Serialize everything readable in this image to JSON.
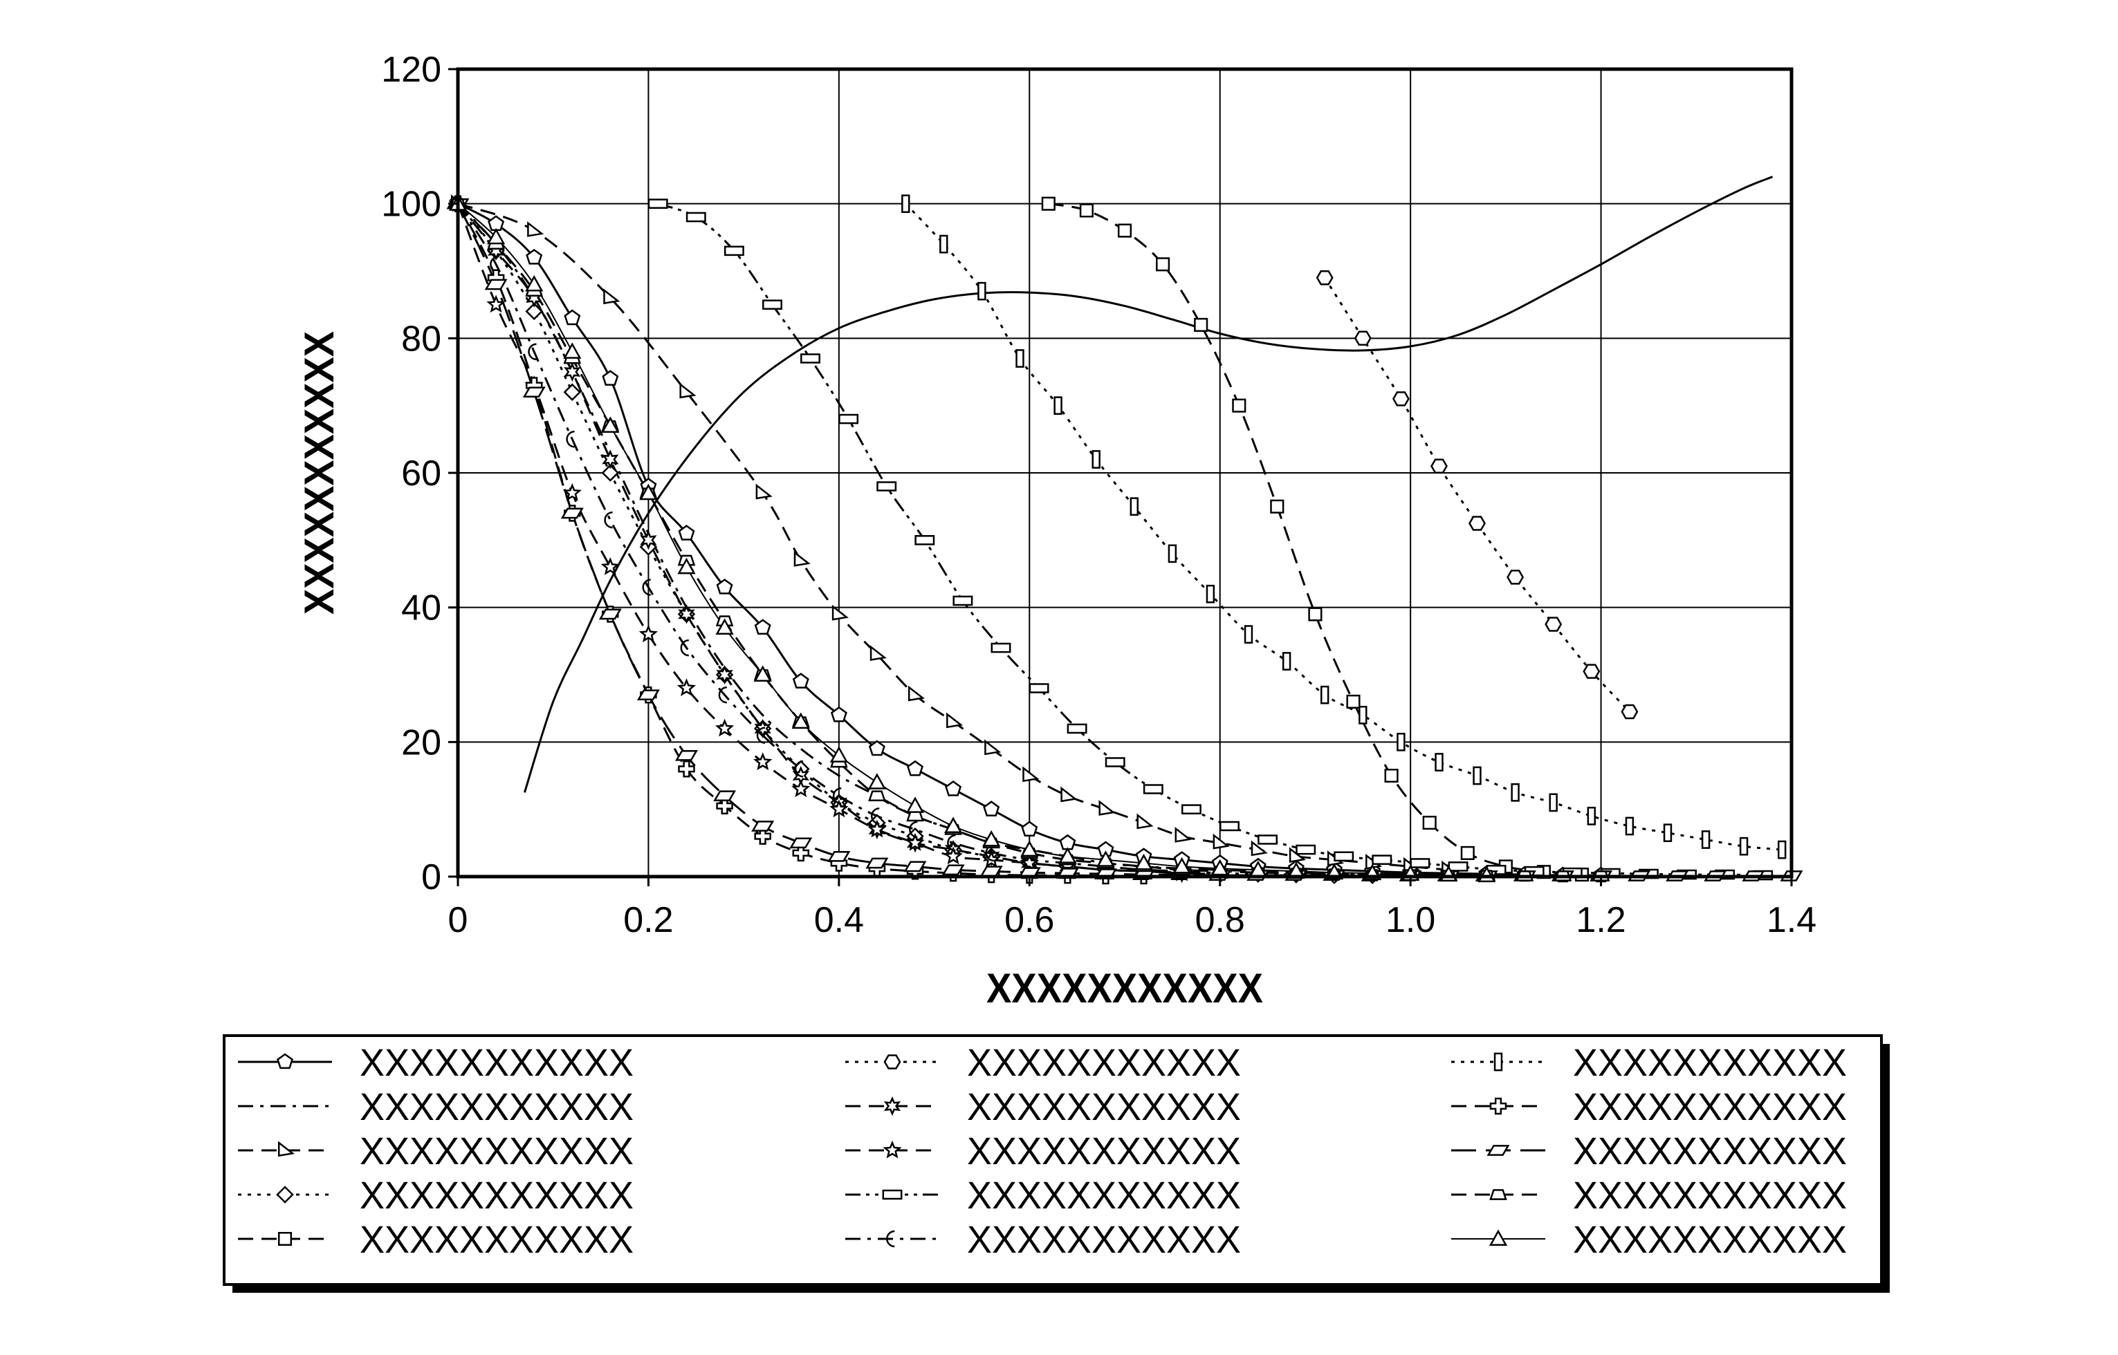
{
  "chart_data": {
    "type": "line",
    "title": "",
    "xlabel": "XXXXXXXXXXX",
    "ylabel": "XXXXXXXXXXX",
    "xlim": [
      0,
      1.4
    ],
    "ylim": [
      0,
      120
    ],
    "xticks": [
      "0",
      "0.2",
      "0.4",
      "0.6",
      "0.8",
      "1.0",
      "1.2",
      "1.4"
    ],
    "yticks": [
      "0",
      "20",
      "40",
      "60",
      "80",
      "100",
      "120"
    ],
    "grid": true,
    "legend": {
      "position": "bottom",
      "columns": 3
    },
    "series": [
      {
        "name": "XXXXXXXXXXX",
        "marker": "pentagon",
        "dash": "solid",
        "x": [
          0,
          0.04,
          0.08,
          0.12,
          0.16,
          0.2,
          0.24,
          0.28,
          0.32,
          0.36,
          0.4,
          0.44,
          0.48,
          0.52,
          0.56,
          0.6,
          0.64,
          0.68,
          0.72,
          0.76,
          0.8,
          0.84,
          0.88,
          0.92,
          0.96,
          1.0,
          1.04,
          1.08,
          1.12,
          1.16,
          1.2
        ],
        "y": [
          100,
          97,
          92,
          83,
          74,
          58,
          51,
          43,
          37,
          29,
          24,
          19,
          16,
          13,
          10,
          7,
          5,
          4,
          3,
          2.5,
          2,
          1.5,
          1.2,
          1,
          0.8,
          0.6,
          0.5,
          0.4,
          0.3,
          0.2,
          0.2
        ]
      },
      {
        "name": "XXXXXXXXXXX",
        "marker": "circle",
        "dash": "dashdot",
        "x": [
          0,
          0.04,
          0.08,
          0.12,
          0.16,
          0.2,
          0.24,
          0.28,
          0.32,
          0.36,
          0.4,
          0.44,
          0.48,
          0.52,
          0.56,
          0.6,
          0.64,
          0.68,
          0.72,
          0.76,
          0.8,
          0.84,
          0.88,
          0.92,
          0.96,
          1.0,
          1.04,
          1.08,
          1.12
        ],
        "y": [
          100,
          94,
          86,
          75,
          63,
          51,
          40,
          31,
          24,
          19,
          15,
          12,
          9,
          7,
          5,
          4,
          3,
          2,
          1.5,
          1.2,
          1,
          0.8,
          0.6,
          0.5,
          0.4,
          0.3,
          0.2,
          0.2,
          0.1
        ]
      },
      {
        "name": "XXXXXXXXXXX",
        "marker": "triangle-right",
        "dash": "dash",
        "x": [
          0,
          0.08,
          0.16,
          0.24,
          0.32,
          0.36,
          0.4,
          0.44,
          0.48,
          0.52,
          0.56,
          0.6,
          0.64,
          0.68,
          0.72,
          0.76,
          0.8,
          0.84,
          0.88,
          0.92,
          0.96,
          1.0,
          1.04
        ],
        "y": [
          100,
          96,
          86,
          72,
          57,
          47,
          39,
          33,
          27,
          23,
          19,
          15,
          12,
          10,
          8,
          6,
          5,
          4,
          3,
          2.5,
          2,
          1.5,
          1
        ]
      },
      {
        "name": "XXXXXXXXXXX",
        "marker": "diamond",
        "dash": "dot",
        "x": [
          0,
          0.04,
          0.08,
          0.12,
          0.16,
          0.2,
          0.24,
          0.28,
          0.32,
          0.36,
          0.4,
          0.44,
          0.48,
          0.52,
          0.56,
          0.6,
          0.64,
          0.68,
          0.72,
          0.76,
          0.8,
          0.84,
          0.88,
          0.92,
          0.96
        ],
        "y": [
          100,
          93,
          84,
          72,
          60,
          49,
          39,
          30,
          22,
          16,
          11,
          8,
          6,
          4,
          3,
          2,
          1.5,
          1,
          0.8,
          0.6,
          0.5,
          0.4,
          0.3,
          0.2,
          0.2
        ]
      },
      {
        "name": "XXXXXXXXXXX",
        "marker": "square",
        "dash": "dash",
        "x": [
          0.62,
          0.66,
          0.7,
          0.74,
          0.78,
          0.82,
          0.86,
          0.9,
          0.94,
          0.98,
          1.02,
          1.06,
          1.1,
          1.14,
          1.18
        ],
        "y": [
          100,
          99,
          96,
          91,
          82,
          70,
          55,
          39,
          26,
          15,
          8,
          3.5,
          1.5,
          0.7,
          0.3
        ]
      },
      {
        "name": "XXXXXXXXXXX",
        "marker": "hexagon",
        "dash": "dot",
        "x": [
          0.91,
          0.95,
          0.99,
          1.03,
          1.07,
          1.11,
          1.15,
          1.19,
          1.23
        ],
        "y": [
          89,
          80,
          71,
          61,
          52.5,
          44.5,
          37.5,
          30.5,
          24.5
        ]
      },
      {
        "name": "XXXXXXXXXXX",
        "marker": "star6",
        "dash": "dash",
        "x": [
          0,
          0.04,
          0.08,
          0.12,
          0.16,
          0.2,
          0.24,
          0.28,
          0.32,
          0.36,
          0.4,
          0.44,
          0.48,
          0.52,
          0.56,
          0.6,
          0.64,
          0.68,
          0.72,
          0.76,
          0.8
        ],
        "y": [
          100,
          93,
          86,
          75,
          62,
          50,
          39,
          30,
          22,
          15,
          11,
          7,
          5,
          4,
          3,
          2,
          1.5,
          1,
          0.8,
          0.5,
          0.4
        ]
      },
      {
        "name": "XXXXXXXXXXX",
        "marker": "star5",
        "dash": "dash",
        "x": [
          0,
          0.04,
          0.08,
          0.12,
          0.16,
          0.2,
          0.24,
          0.28,
          0.32,
          0.36,
          0.4,
          0.44,
          0.48,
          0.52,
          0.56,
          0.6,
          0.64,
          0.68,
          0.72,
          0.76
        ],
        "y": [
          100,
          85,
          73,
          57,
          46,
          36,
          28,
          22,
          17,
          13,
          10,
          7,
          5,
          3,
          2.5,
          2,
          1.5,
          1,
          0.8,
          0.5
        ]
      },
      {
        "name": "XXXXXXXXXXX",
        "marker": "rect",
        "dash": "dashdotdot",
        "x": [
          0.21,
          0.25,
          0.29,
          0.33,
          0.37,
          0.41,
          0.45,
          0.49,
          0.53,
          0.57,
          0.61,
          0.65,
          0.69,
          0.73,
          0.77,
          0.81,
          0.85,
          0.89,
          0.93,
          0.97,
          1.01,
          1.05,
          1.09,
          1.13,
          1.17,
          1.21,
          1.25,
          1.29,
          1.33,
          1.37
        ],
        "y": [
          100,
          98,
          93,
          85,
          77,
          68,
          58,
          50,
          41,
          34,
          28,
          22,
          17,
          13,
          10,
          7.5,
          5.5,
          4,
          3,
          2.5,
          2,
          1.5,
          1,
          0.8,
          0.6,
          0.5,
          0.4,
          0.3,
          0.3,
          0.2
        ]
      },
      {
        "name": "XXXXXXXXXXX",
        "marker": "crescent",
        "dash": "dashdot",
        "x": [
          0,
          0.04,
          0.08,
          0.12,
          0.16,
          0.2,
          0.24,
          0.28,
          0.32,
          0.36,
          0.4,
          0.44,
          0.48,
          0.52,
          0.56,
          0.6,
          0.64,
          0.68,
          0.72,
          0.76,
          0.8
        ],
        "y": [
          100,
          91,
          78,
          65,
          53,
          43,
          34,
          27,
          21,
          16,
          12,
          9,
          7,
          5,
          3.5,
          2.5,
          2,
          1.5,
          1,
          0.8,
          0.5
        ]
      },
      {
        "name": "XXXXXXXXXXX",
        "marker": "thin-rect",
        "dash": "dot",
        "x": [
          0.47,
          0.51,
          0.55,
          0.59,
          0.63,
          0.67,
          0.71,
          0.75,
          0.79,
          0.83,
          0.87,
          0.91,
          0.95,
          0.99,
          1.03,
          1.07,
          1.11,
          1.15,
          1.19,
          1.23,
          1.27,
          1.31,
          1.35,
          1.39
        ],
        "y": [
          100,
          94,
          87,
          77,
          70,
          62,
          55,
          48,
          42,
          36,
          32,
          27,
          24,
          20,
          17,
          15,
          12.5,
          11,
          9,
          7.5,
          6.5,
          5.5,
          4.5,
          4
        ]
      },
      {
        "name": "XXXXXXXXXXX",
        "marker": "cross",
        "dash": "dash",
        "x": [
          0,
          0.04,
          0.08,
          0.12,
          0.16,
          0.2,
          0.24,
          0.28,
          0.32,
          0.36,
          0.4,
          0.44,
          0.48,
          0.52,
          0.56,
          0.6,
          0.64,
          0.68,
          0.72
        ],
        "y": [
          100,
          89,
          73,
          54,
          39,
          27,
          16,
          10.5,
          6,
          3.5,
          2,
          1.2,
          0.8,
          0.5,
          0.3,
          0.2,
          0.2,
          0.1,
          0.1
        ]
      },
      {
        "name": "XXXXXXXXXXX",
        "marker": "parallelogram",
        "dash": "longdash",
        "x": [
          0,
          0.04,
          0.08,
          0.12,
          0.16,
          0.2,
          0.24,
          0.28,
          0.32,
          0.36,
          0.4,
          0.44,
          0.48,
          0.52,
          0.56,
          0.6,
          0.64,
          0.68,
          0.72,
          0.76,
          0.8,
          0.84,
          0.88,
          0.92,
          0.96,
          1.0,
          1.04,
          1.08,
          1.12,
          1.16,
          1.2,
          1.24,
          1.28,
          1.32,
          1.36,
          1.4
        ],
        "y": [
          100,
          88,
          72,
          54,
          39,
          27,
          18,
          12,
          7.5,
          5,
          3,
          2,
          1.5,
          1,
          0.8,
          0.6,
          0.5,
          0.4,
          0.3,
          0.3,
          0.2,
          0.2,
          0.2,
          0.2,
          0.1,
          0.1,
          0.1,
          0.1,
          0.1,
          0.1,
          0.1,
          0.1,
          0.1,
          0.1,
          0.1,
          0.1
        ]
      },
      {
        "name": "XXXXXXXXXXX",
        "marker": "trapezoid",
        "dash": "dash",
        "x": [
          0,
          0.04,
          0.08,
          0.12,
          0.16,
          0.2,
          0.24,
          0.28,
          0.32,
          0.36,
          0.4,
          0.44,
          0.48,
          0.52,
          0.56,
          0.6,
          0.64,
          0.68,
          0.72,
          0.76,
          0.8,
          0.84,
          0.88,
          0.92,
          0.96,
          1.0,
          1.04,
          1.08,
          1.12,
          1.16,
          1.2
        ],
        "y": [
          100,
          94,
          87,
          77,
          67,
          57,
          47,
          38,
          30,
          23,
          17,
          12,
          9,
          7,
          5,
          3.5,
          2.5,
          2,
          1.5,
          1,
          0.8,
          0.6,
          0.5,
          0.4,
          0.3,
          0.3,
          0.2,
          0.2,
          0.1,
          0.1,
          0.1
        ]
      },
      {
        "name": "XXXXXXXXXXX",
        "marker": "triangle",
        "dash": "thin",
        "x": [
          0,
          0.04,
          0.08,
          0.12,
          0.16,
          0.2,
          0.24,
          0.28,
          0.32,
          0.36,
          0.4,
          0.44,
          0.48,
          0.52,
          0.56,
          0.6,
          0.64,
          0.68,
          0.72,
          0.76,
          0.8,
          0.84,
          0.88,
          0.92,
          0.96,
          1.0,
          1.04,
          1.08
        ],
        "y": [
          100,
          95,
          88,
          78,
          67,
          57,
          46,
          37,
          30,
          23,
          18,
          14,
          10.5,
          7.5,
          5.5,
          4,
          3,
          2.5,
          2,
          1.5,
          1.2,
          1,
          0.8,
          0.6,
          0.5,
          0.4,
          0.3,
          0.2
        ]
      },
      {
        "name": "",
        "marker": "none",
        "dash": "solid",
        "x": [
          0.07,
          0.1,
          0.13,
          0.16,
          0.2,
          0.25,
          0.3,
          0.35,
          0.4,
          0.45,
          0.5,
          0.55,
          0.6,
          0.65,
          0.7,
          0.75,
          0.8,
          0.85,
          0.9,
          0.95,
          1.0,
          1.05,
          1.1,
          1.15,
          1.2,
          1.25,
          1.3,
          1.35,
          1.38
        ],
        "y": [
          12.5,
          26,
          35,
          44,
          54,
          64,
          72,
          77.5,
          81.5,
          84,
          85.8,
          86.7,
          86.8,
          86.2,
          84.8,
          82.8,
          80.7,
          79.2,
          78.4,
          78.2,
          78.8,
          80.5,
          83.5,
          87.2,
          91,
          95,
          98.8,
          102.3,
          104
        ]
      }
    ]
  }
}
